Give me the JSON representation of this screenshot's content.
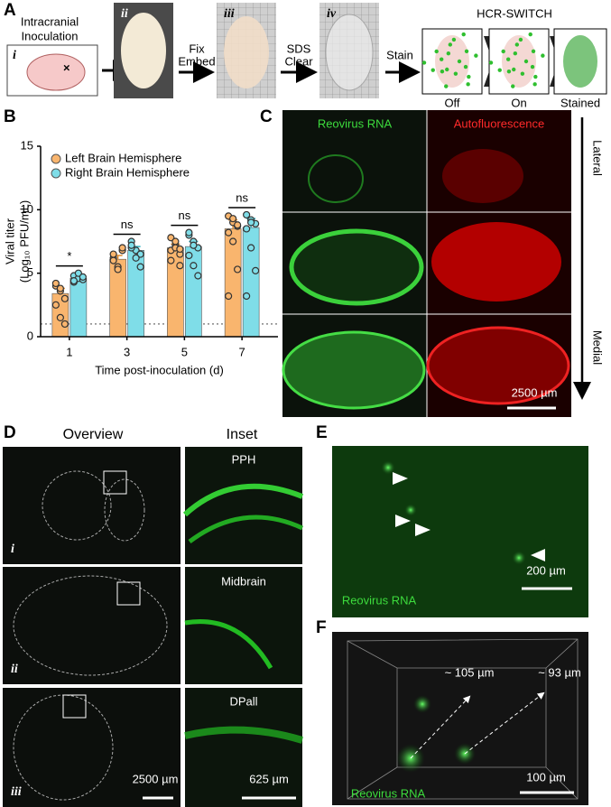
{
  "figure": {
    "panel_labels": [
      "A",
      "B",
      "C",
      "D",
      "E",
      "F"
    ],
    "a": {
      "step_labels": [
        "i",
        "ii",
        "iii",
        "iv"
      ],
      "inoculation": [
        "Intracranial",
        "Inoculation"
      ],
      "fix": [
        "Fix",
        "Embed"
      ],
      "clear": [
        "SDS",
        "Clear"
      ],
      "stain": "Stain",
      "hcr_title": "HCR-SWITCH",
      "hcr_states": [
        "Off",
        "On",
        "Stained"
      ]
    },
    "c": {
      "channels": [
        "Reovirus RNA",
        "Autofluorescence"
      ],
      "axis": [
        "Lateral",
        "Medial"
      ],
      "scale": "2500 µm"
    },
    "d": {
      "columns": [
        "Overview",
        "Inset"
      ],
      "insets": [
        "PPH",
        "Midbrain",
        "DPall"
      ],
      "rows": [
        "i",
        "ii",
        "iii"
      ],
      "scales": [
        "2500 µm",
        "625 µm"
      ]
    },
    "e": {
      "channel": "Reovirus RNA",
      "scale": "200 µm"
    },
    "f": {
      "lengths": [
        "~ 105 µm",
        "~ 93 µm"
      ],
      "channel": "Reovirus RNA",
      "scale": "100 µm"
    }
  },
  "chart_data": {
    "type": "bar",
    "y_label": [
      "Viral titer",
      "(Log₁₀ PFU/mL)"
    ],
    "x_label": "Time post-inoculation (d)",
    "categories": [
      "1",
      "3",
      "5",
      "7"
    ],
    "series": [
      {
        "name": "Left Brain Hemisphere",
        "color": "#f9b56e",
        "values": [
          3.4,
          6.1,
          7.0,
          8.5
        ],
        "errors": [
          0.4,
          0.3,
          0.3,
          0.7
        ],
        "points": [
          [
            4.0,
            3.6,
            3.0,
            2.5,
            1.5,
            1.0,
            4.2,
            3.8
          ],
          [
            6.2,
            5.5,
            6.8,
            6.0,
            5.3,
            7.0,
            6.5
          ],
          [
            7.8,
            7.2,
            6.5,
            6.8,
            7.5,
            5.6,
            6.0,
            7.0,
            6.9
          ],
          [
            9.5,
            9.0,
            8.7,
            8.2,
            7.5,
            5.3,
            3.2,
            9.3,
            8.8
          ]
        ]
      },
      {
        "name": "Right Brain Hemisphere",
        "color": "#7fdde8",
        "values": [
          4.6,
          6.8,
          7.1,
          8.6
        ],
        "errors": [
          0.1,
          0.3,
          0.4,
          0.7
        ],
        "points": [
          [
            4.8,
            4.6,
            4.5,
            4.3,
            5.0,
            4.7,
            4.4
          ],
          [
            7.5,
            6.8,
            6.5,
            7.0,
            6.2,
            5.5,
            7.2
          ],
          [
            8.0,
            7.5,
            7.0,
            6.4,
            5.6,
            4.8,
            8.2,
            7.2
          ],
          [
            9.6,
            9.2,
            8.9,
            8.5,
            7.0,
            5.2,
            3.2,
            9.0
          ]
        ]
      }
    ],
    "significance": [
      "*",
      "ns",
      "ns",
      "ns"
    ],
    "detection_limit": 1,
    "ylim": [
      0,
      15
    ],
    "yticks": [
      0,
      5,
      10,
      15
    ]
  }
}
